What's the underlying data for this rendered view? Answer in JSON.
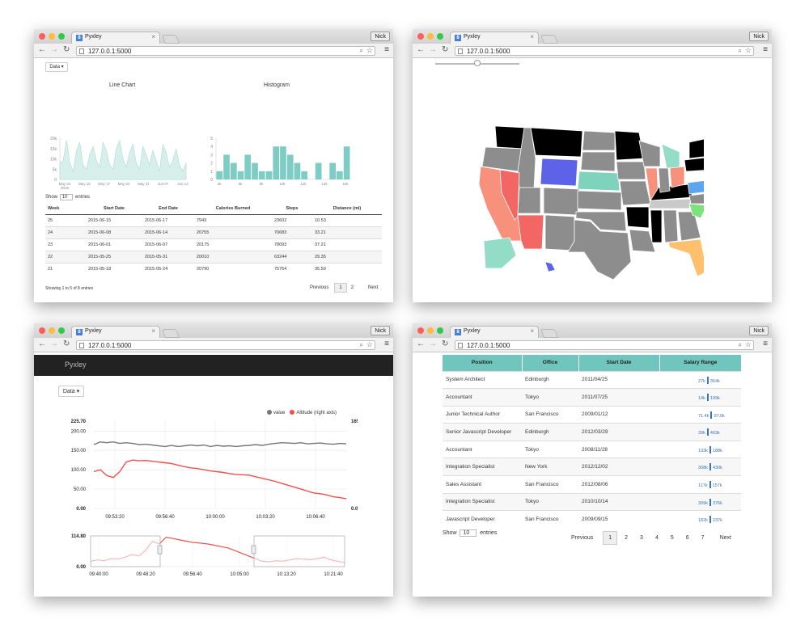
{
  "windows": [
    {
      "tab_title": "Pyxley",
      "url": "127.0.0.1:5000",
      "user": "Nick"
    },
    {
      "tab_title": "Pyxley",
      "url": "127.0.0.1:5000",
      "user": "Nick"
    },
    {
      "tab_title": "Pyxley",
      "url": "127.0.0.1:5000",
      "user": "Nick"
    },
    {
      "tab_title": "Pyxley",
      "url": "127.0.0.1:5000",
      "user": "Nick"
    }
  ],
  "icons": {
    "back": "back-arrow-icon",
    "forward": "forward-arrow-icon",
    "reload": "reload-icon",
    "search": "search-icon",
    "star": "star-icon",
    "menu": "menu-icon",
    "favicon": "favicon-icon"
  },
  "colors": {
    "teal": "#7ecdc4",
    "red": "#f24e4e",
    "gray_line": "#777777",
    "header_teal": "#70c6bc",
    "bar_blue": "#3a74b6"
  },
  "w1": {
    "data_label": "Data ▾",
    "line_chart": {
      "title": "Line Chart",
      "y_ticks": [
        "20k",
        "15k",
        "10k",
        "5k",
        "0"
      ],
      "x_ticks": [
        "May 03",
        "May 10",
        "May 17",
        "May 24",
        "May 31",
        "Jun 07",
        "Jun 14"
      ],
      "x_tick_extra": "2015",
      "chart_data": {
        "type": "area",
        "y_range": [
          0,
          20000
        ],
        "values": [
          8000,
          9000,
          19000,
          8000,
          4000,
          14000,
          18000,
          7000,
          5000,
          12000,
          16000,
          9000,
          6000,
          18000,
          14000,
          7000,
          5000,
          15000,
          19000,
          10000,
          6000,
          13000,
          17000,
          8000,
          5000,
          16000,
          12000,
          7000,
          14000,
          9000,
          4000,
          17000,
          13000,
          6000,
          9000,
          15000,
          7000,
          4000,
          8000
        ]
      }
    },
    "histogram": {
      "title": "Histogram",
      "y_ticks": [
        "5",
        "4",
        "3",
        "2",
        "1",
        "0"
      ],
      "x_ticks": [
        "4k",
        "6k",
        "8k",
        "10k",
        "12k",
        "14k",
        "16k"
      ],
      "chart_data": {
        "type": "bar",
        "y_range": [
          0,
          5
        ],
        "values": [
          1,
          3,
          2,
          1,
          3,
          2,
          1,
          1,
          4,
          4,
          3,
          2,
          1,
          0,
          2,
          0,
          2,
          1,
          4
        ]
      }
    },
    "show_label": "Show",
    "show_value": "10",
    "entries_label": "entries",
    "table": {
      "headers": [
        "Week",
        "Start Date",
        "End Date",
        "Calories Burned",
        "Steps",
        "Distance (mi)"
      ],
      "rows": [
        [
          "25",
          "2015-06-15",
          "2015-06-17",
          "7943",
          "23602",
          "10.53"
        ],
        [
          "24",
          "2015-06-08",
          "2015-06-14",
          "20755",
          "70683",
          "33.21"
        ],
        [
          "23",
          "2015-06-01",
          "2015-06-07",
          "20175",
          "78093",
          "37.21"
        ],
        [
          "22",
          "2015-05-25",
          "2015-05-31",
          "20010",
          "63244",
          "29.35"
        ],
        [
          "21",
          "2015-05-18",
          "2015-05-24",
          "20790",
          "75764",
          "35.59"
        ]
      ]
    },
    "footer": "Showing 1 to 5 of 8 entries",
    "pagination": {
      "previous": "Previous",
      "pages": [
        "1",
        "2"
      ],
      "next": "Next"
    }
  },
  "w3": {
    "navbar_title": "Pyxley",
    "data_label": "Data ▾",
    "legend": [
      {
        "name": "value",
        "color": "#777777"
      },
      {
        "name": "Altitude (right axis)",
        "color": "#f24e4e"
      }
    ],
    "main_chart": {
      "y_left_ticks": [
        "225.70",
        "200.00",
        "150.00",
        "100.00",
        "50.00",
        "0.00"
      ],
      "y_right_ticks": [
        "165.51",
        "0.00"
      ],
      "x_ticks": [
        "09:53:20",
        "09:56:40",
        "10:00:00",
        "10:03:20",
        "10:06:40"
      ],
      "chart_data": {
        "type": "line",
        "y_range": [
          0,
          225.7
        ],
        "series": [
          {
            "name": "value",
            "values": [
              165,
              172,
              170,
              172,
              168,
              170,
              168,
              165,
              166,
              164,
              162,
              160,
              163,
              160,
              162,
              164,
              162,
              164,
              160,
              163,
              161,
              162,
              160,
              162,
              163,
              165,
              163,
              166,
              168,
              170,
              169,
              168,
              170,
              167,
              168,
              169,
              167,
              166,
              168,
              167
            ]
          },
          {
            "name": "Altitude (right axis)",
            "values": [
              95,
              100,
              85,
              80,
              95,
              120,
              125,
              123,
              124,
              122,
              120,
              118,
              116,
              112,
              108,
              105,
              103,
              100,
              97,
              95,
              93,
              90,
              88,
              87,
              86,
              82,
              78,
              74,
              70,
              65,
              60,
              55,
              50,
              45,
              40,
              38,
              35,
              30,
              28,
              25
            ]
          }
        ]
      }
    },
    "brush_chart": {
      "y_ticks": [
        "114.80",
        "0.00"
      ],
      "x_ticks": [
        "09:40:00",
        "09:48:20",
        "09:56:40",
        "10:05:00",
        "10:13:20",
        "10:21:40"
      ],
      "chart_data": {
        "type": "line",
        "y_range": [
          0,
          114.8
        ],
        "values": [
          20,
          25,
          22,
          30,
          28,
          35,
          45,
          40,
          60,
          95,
          85,
          110,
          105,
          100,
          95,
          90,
          88,
          85,
          80,
          75,
          70,
          60,
          50,
          40,
          30,
          20,
          18,
          22,
          20,
          25,
          30,
          28,
          26,
          30,
          35,
          25,
          20,
          15
        ]
      }
    }
  },
  "w4": {
    "headers": [
      "Position",
      "Office",
      "Start Date",
      "Salary Range"
    ],
    "rows": [
      {
        "position": "System Architect",
        "office": "Edinburgh",
        "start": "2011/04/25",
        "low": "27k",
        "high": "364k"
      },
      {
        "position": "Accountant",
        "office": "Tokyo",
        "start": "2011/07/25",
        "low": "14k",
        "high": "199k"
      },
      {
        "position": "Junior Technical Author",
        "office": "San Francisco",
        "start": "2009/01/12",
        "low": "71.4k",
        "high": "97.0k"
      },
      {
        "position": "Senior Javascript Developer",
        "office": "Edinburgh",
        "start": "2012/03/29",
        "low": "39k",
        "high": "493k"
      },
      {
        "position": "Accountant",
        "office": "Tokyo",
        "start": "2008/11/28",
        "low": "133k",
        "high": "188k"
      },
      {
        "position": "Integration Specialist",
        "office": "New York",
        "start": "2012/12/02",
        "low": "308k",
        "high": "430k"
      },
      {
        "position": "Sales Assistant",
        "office": "San Francisco",
        "start": "2012/08/06",
        "low": "117k",
        "high": "157k"
      },
      {
        "position": "Integration Specialist",
        "office": "Tokyo",
        "start": "2010/10/14",
        "low": "309k",
        "high": "376k"
      },
      {
        "position": "Javascript Developer",
        "office": "San Francisco",
        "start": "2009/09/15",
        "low": "182k",
        "high": "237k"
      }
    ],
    "show_label": "Show",
    "show_value": "10",
    "entries_label": "entries",
    "pagination": {
      "previous": "Previous",
      "pages": [
        "1",
        "2",
        "3",
        "4",
        "5",
        "6",
        "7"
      ],
      "next": "Next"
    }
  }
}
